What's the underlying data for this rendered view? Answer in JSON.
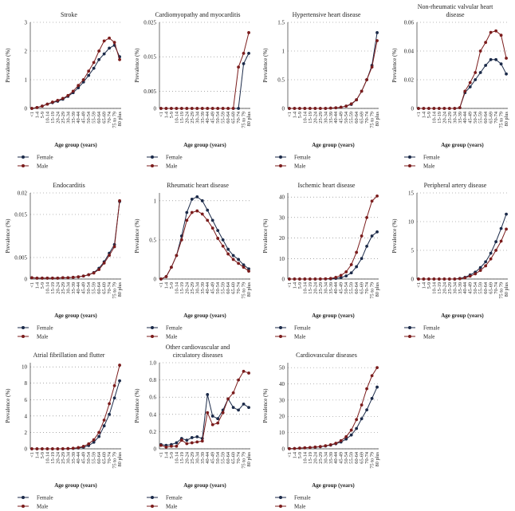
{
  "chart_data": [
    {
      "type": "line",
      "title": "Stroke",
      "ylabel": "Prevalence (%)",
      "xlabel": "Age group (years)",
      "categories": [
        "<1",
        "1-4",
        "5-9",
        "10-14",
        "15-19",
        "20-24",
        "25-29",
        "30-34",
        "35-39",
        "40-44",
        "45-49",
        "50-54",
        "55-59",
        "60-64",
        "65-69",
        "70-74",
        "75 to 79",
        "80 plus"
      ],
      "ylim": [
        0,
        3
      ],
      "yticks": [
        0,
        1,
        2,
        3
      ],
      "grid": true,
      "series": [
        {
          "name": "Female",
          "color": "#1b2a49",
          "values": [
            0,
            0.03,
            0.08,
            0.15,
            0.2,
            0.25,
            0.32,
            0.42,
            0.55,
            0.72,
            0.92,
            1.15,
            1.4,
            1.7,
            1.9,
            2.1,
            2.2,
            1.8
          ]
        },
        {
          "name": "Male",
          "color": "#7b1c1c",
          "values": [
            0,
            0.03,
            0.08,
            0.15,
            0.22,
            0.28,
            0.35,
            0.45,
            0.6,
            0.8,
            1.0,
            1.3,
            1.6,
            2.0,
            2.35,
            2.45,
            2.3,
            1.7
          ]
        }
      ]
    },
    {
      "type": "line",
      "title": "Cardiomyopathy and myocarditis",
      "ylabel": "Prevalence (%)",
      "xlabel": "Age group (years)",
      "categories": [
        "<1",
        "1-4",
        "5-9",
        "10-14",
        "15-19",
        "20-24",
        "25-29",
        "30-34",
        "35-39",
        "40-44",
        "45-49",
        "50-54",
        "55-59",
        "60-64",
        "65-69",
        "70-74",
        "75 to 79",
        "80 plus"
      ],
      "ylim": [
        0,
        0.025
      ],
      "yticks": [
        0,
        0.005,
        0.015,
        0.025
      ],
      "grid": true,
      "series": [
        {
          "name": "Female",
          "color": "#1b2a49",
          "values": [
            0,
            0,
            0,
            0,
            0,
            0,
            0,
            0,
            0,
            0,
            0,
            0,
            0,
            0,
            0,
            0,
            0.013,
            0.016
          ]
        },
        {
          "name": "Male",
          "color": "#7b1c1c",
          "values": [
            0,
            0,
            0,
            0,
            0,
            0,
            0,
            0,
            0,
            0,
            0,
            0,
            0,
            0,
            0,
            0.012,
            0.016,
            0.022
          ]
        }
      ]
    },
    {
      "type": "line",
      "title": "Hypertensive heart disease",
      "ylabel": "Prevalence (%)",
      "xlabel": "Age group (years)",
      "categories": [
        "<1",
        "1-4",
        "5-9",
        "10-14",
        "15-19",
        "20-24",
        "25-29",
        "30-34",
        "35-39",
        "40-44",
        "45-49",
        "50-54",
        "55-59",
        "60-64",
        "65-69",
        "70-74",
        "75 to 79",
        "80 plus"
      ],
      "ylim": [
        0,
        1.5
      ],
      "yticks": [
        0,
        0.5,
        1,
        1.5
      ],
      "grid": true,
      "series": [
        {
          "name": "Female",
          "color": "#1b2a49",
          "values": [
            0,
            0,
            0,
            0,
            0,
            0,
            0,
            0,
            0.005,
            0.01,
            0.02,
            0.04,
            0.07,
            0.15,
            0.3,
            0.5,
            0.75,
            1.32
          ]
        },
        {
          "name": "Male",
          "color": "#7b1c1c",
          "values": [
            0,
            0,
            0,
            0,
            0,
            0,
            0,
            0,
            0.005,
            0.01,
            0.02,
            0.04,
            0.08,
            0.15,
            0.3,
            0.5,
            0.72,
            1.18
          ]
        }
      ]
    },
    {
      "type": "line",
      "title": "Non-rheumatic valvular heart disease",
      "ylabel": "Prevalence (%)",
      "xlabel": "Age group (years)",
      "categories": [
        "<1",
        "1-4",
        "5-9",
        "10-14",
        "15-19",
        "20-24",
        "25-29",
        "30-34",
        "35-39",
        "40-44",
        "45-49",
        "50-54",
        "55-59",
        "60-64",
        "65-69",
        "70-74",
        "75 to 79",
        "80 plus"
      ],
      "ylim": [
        0,
        0.06
      ],
      "yticks": [
        0,
        0.02,
        0.04,
        0.06
      ],
      "grid": true,
      "series": [
        {
          "name": "Female",
          "color": "#1b2a49",
          "values": [
            0,
            0,
            0,
            0,
            0,
            0,
            0,
            0,
            0.0005,
            0.011,
            0.015,
            0.02,
            0.025,
            0.03,
            0.034,
            0.034,
            0.031,
            0.024
          ]
        },
        {
          "name": "Male",
          "color": "#7b1c1c",
          "values": [
            0,
            0,
            0,
            0,
            0,
            0,
            0,
            0,
            0.0005,
            0.012,
            0.018,
            0.025,
            0.04,
            0.046,
            0.053,
            0.054,
            0.051,
            0.035
          ]
        }
      ]
    },
    {
      "type": "line",
      "title": "Endocarditis",
      "ylabel": "Prevalence (%)",
      "xlabel": "Age group (years)",
      "categories": [
        "<1",
        "1-4",
        "5-9",
        "10-14",
        "15-19",
        "20-24",
        "25-29",
        "30-34",
        "35-39",
        "40-44",
        "45-49",
        "50-54",
        "55-59",
        "60-64",
        "65-69",
        "70-74",
        "75 to 79",
        "80 plus"
      ],
      "ylim": [
        0,
        0.02
      ],
      "yticks": [
        0,
        0.005,
        0.015,
        0.02
      ],
      "grid": true,
      "series": [
        {
          "name": "Female",
          "color": "#1b2a49",
          "values": [
            0.0003,
            0.0002,
            0.0002,
            0.0002,
            0.0002,
            0.0002,
            0.0003,
            0.0003,
            0.0004,
            0.0005,
            0.0007,
            0.001,
            0.0015,
            0.0025,
            0.004,
            0.006,
            0.008,
            0.018
          ]
        },
        {
          "name": "Male",
          "color": "#7b1c1c",
          "values": [
            0.0003,
            0.0002,
            0.0002,
            0.0002,
            0.0002,
            0.0002,
            0.0003,
            0.0003,
            0.0004,
            0.0005,
            0.0007,
            0.001,
            0.0014,
            0.0022,
            0.0037,
            0.0055,
            0.0075,
            0.0182
          ]
        }
      ]
    },
    {
      "type": "line",
      "title": "Rheumatic heart disease",
      "ylabel": "Prevalence (%)",
      "xlabel": "Age group (years)",
      "categories": [
        "<1",
        "1-4",
        "5-9",
        "10-14",
        "15-19",
        "20-24",
        "25-29",
        "30-34",
        "35-39",
        "40-44",
        "45-49",
        "50-54",
        "55-59",
        "60-64",
        "65-69",
        "70-74",
        "75 to 79",
        "80 plus"
      ],
      "ylim": [
        0,
        1.1
      ],
      "yticks": [
        0,
        0.5,
        1
      ],
      "grid": true,
      "series": [
        {
          "name": "Female",
          "color": "#1b2a49",
          "values": [
            0,
            0.03,
            0.15,
            0.3,
            0.55,
            0.85,
            1.02,
            1.05,
            1.0,
            0.88,
            0.75,
            0.62,
            0.5,
            0.38,
            0.3,
            0.25,
            0.18,
            0.13
          ]
        },
        {
          "name": "Male",
          "color": "#7b1c1c",
          "values": [
            0,
            0.03,
            0.15,
            0.3,
            0.5,
            0.75,
            0.85,
            0.87,
            0.83,
            0.75,
            0.65,
            0.52,
            0.42,
            0.32,
            0.25,
            0.2,
            0.15,
            0.1
          ]
        }
      ]
    },
    {
      "type": "line",
      "title": "Ischemic heart disease",
      "ylabel": "Prevalence (%)",
      "xlabel": "Age group (years)",
      "categories": [
        "<1",
        "1-4",
        "5-9",
        "10-14",
        "15-19",
        "20-24",
        "25-29",
        "30-34",
        "35-39",
        "40-44",
        "45-49",
        "50-54",
        "55-59",
        "60-64",
        "65-69",
        "70-74",
        "75 to 79",
        "80 plus"
      ],
      "ylim": [
        0,
        42
      ],
      "yticks": [
        0,
        10,
        20,
        30,
        40
      ],
      "grid": true,
      "series": [
        {
          "name": "Female",
          "color": "#1b2a49",
          "values": [
            0,
            0,
            0,
            0,
            0,
            0,
            0,
            0.05,
            0.1,
            0.3,
            0.7,
            1.5,
            3,
            6,
            10,
            16,
            21,
            23
          ]
        },
        {
          "name": "Male",
          "color": "#7b1c1c",
          "values": [
            0,
            0,
            0,
            0,
            0,
            0,
            0.05,
            0.1,
            0.3,
            0.8,
            1.8,
            3.5,
            7,
            13,
            21,
            30,
            38,
            40.5
          ]
        }
      ]
    },
    {
      "type": "line",
      "title": "Peripheral artery disease",
      "ylabel": "Prevalence (%)",
      "xlabel": "Age group (years)",
      "categories": [
        "<1",
        "1-4",
        "5-9",
        "10-14",
        "15-19",
        "20-24",
        "25-29",
        "30-34",
        "35-39",
        "40-44",
        "45-49",
        "50-54",
        "55-59",
        "60-64",
        "65-69",
        "70-74",
        "75 to 79",
        "80 plus"
      ],
      "ylim": [
        0,
        15
      ],
      "yticks": [
        0,
        5,
        10,
        15
      ],
      "grid": true,
      "series": [
        {
          "name": "Female",
          "color": "#1b2a49",
          "values": [
            0,
            0,
            0,
            0,
            0,
            0,
            0,
            0,
            0.1,
            0.3,
            0.7,
            1.2,
            2.0,
            3.0,
            4.5,
            6.5,
            8.8,
            11.3
          ]
        },
        {
          "name": "Male",
          "color": "#7b1c1c",
          "values": [
            0,
            0,
            0,
            0,
            0,
            0,
            0,
            0,
            0.05,
            0.2,
            0.5,
            0.9,
            1.5,
            2.3,
            3.5,
            5.0,
            6.6,
            8.7
          ]
        }
      ]
    },
    {
      "type": "line",
      "title": "Atrial fibrillation and flutter",
      "ylabel": "Prevalence (%)",
      "xlabel": "Age group (years)",
      "categories": [
        "<1",
        "1-4",
        "5-9",
        "10-14",
        "15-19",
        "20-24",
        "25-29",
        "30-34",
        "35-39",
        "40-44",
        "45-49",
        "50-54",
        "55-59",
        "60-64",
        "65-69",
        "70-74",
        "75 to 79",
        "80 plus"
      ],
      "ylim": [
        0,
        10.5
      ],
      "yticks": [
        0,
        2,
        4,
        6,
        8,
        10
      ],
      "grid": true,
      "series": [
        {
          "name": "Female",
          "color": "#1b2a49",
          "values": [
            0,
            0,
            0,
            0,
            0,
            0,
            0,
            0.02,
            0.05,
            0.1,
            0.2,
            0.4,
            0.8,
            1.5,
            2.8,
            4.2,
            6.2,
            8.3
          ]
        },
        {
          "name": "Male",
          "color": "#7b1c1c",
          "values": [
            0,
            0,
            0,
            0,
            0,
            0,
            0.01,
            0.03,
            0.07,
            0.15,
            0.3,
            0.6,
            1.1,
            2.0,
            3.5,
            5.5,
            7.7,
            10.2
          ]
        }
      ]
    },
    {
      "type": "line",
      "title": "Other cardiovascular and circulatory diseases",
      "ylabel": "Prevalence (%)",
      "xlabel": "Age group (years)",
      "categories": [
        "<1",
        "1-4",
        "5-9",
        "10-14",
        "15-19",
        "20-24",
        "25-29",
        "30-34",
        "35-39",
        "40-44",
        "45-49",
        "50-54",
        "55-59",
        "60-64",
        "65-69",
        "70-74",
        "75 to 79",
        "80 plus"
      ],
      "ylim": [
        0,
        1
      ],
      "yticks": [
        0,
        0.2,
        0.4,
        0.6,
        0.8,
        {
          "value": 1,
          "label": "1.0"
        }
      ],
      "grid": true,
      "series": [
        {
          "name": "Female",
          "color": "#1b2a49",
          "values": [
            0.05,
            0.04,
            0.05,
            0.07,
            0.12,
            0.1,
            0.13,
            0.14,
            0.12,
            0.63,
            0.38,
            0.35,
            0.45,
            0.58,
            0.48,
            0.45,
            0.52,
            0.48
          ]
        },
        {
          "name": "Male",
          "color": "#7b1c1c",
          "values": [
            0.04,
            0.02,
            0.03,
            0.03,
            0.1,
            0.06,
            0.07,
            0.08,
            0.09,
            0.42,
            0.28,
            0.3,
            0.42,
            0.58,
            0.65,
            0.8,
            0.9,
            0.88
          ]
        }
      ]
    },
    {
      "type": "line",
      "title": "Cardiovascular diseases",
      "ylabel": "Prevalence (%)",
      "xlabel": "Age group (years)",
      "categories": [
        "<1",
        "1-4",
        "5-9",
        "10-14",
        "15-19",
        "20-24",
        "25-29",
        "30-34",
        "35-39",
        "40-44",
        "45-49",
        "50-54",
        "55-59",
        "60-64",
        "65-69",
        "70-74",
        "75 to 79",
        "80 plus"
      ],
      "ylim": [
        0,
        53
      ],
      "yticks": [
        0,
        10,
        20,
        30,
        40,
        50
      ],
      "grid": true,
      "series": [
        {
          "name": "Female",
          "color": "#1b2a49",
          "values": [
            0.1,
            0.2,
            0.4,
            0.6,
            0.8,
            1,
            1.3,
            1.7,
            2.3,
            3.1,
            4.2,
            6,
            8.5,
            12.5,
            18.5,
            24,
            31,
            38
          ]
        },
        {
          "name": "Male",
          "color": "#7b1c1c",
          "values": [
            0.1,
            0.2,
            0.4,
            0.6,
            0.8,
            1.1,
            1.4,
            1.9,
            2.5,
            3.4,
            5,
            7.5,
            11.5,
            18,
            27,
            37,
            45,
            50
          ]
        }
      ]
    }
  ]
}
